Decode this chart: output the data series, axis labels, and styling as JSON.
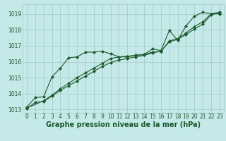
{
  "xlabel": "Graphe pression niveau de la mer (hPa)",
  "bg_color": "#c5e8e8",
  "grid_color": "#a0c8c8",
  "line_color": "#1a5c2a",
  "xlim": [
    -0.5,
    23.5
  ],
  "ylim": [
    1012.8,
    1019.6
  ],
  "yticks": [
    1013,
    1014,
    1015,
    1016,
    1017,
    1018,
    1019
  ],
  "xticks": [
    0,
    1,
    2,
    3,
    4,
    5,
    6,
    7,
    8,
    9,
    10,
    11,
    12,
    13,
    14,
    15,
    16,
    17,
    18,
    19,
    20,
    21,
    22,
    23
  ],
  "series1_x": [
    0,
    1,
    2,
    3,
    4,
    5,
    6,
    7,
    8,
    9,
    10,
    11,
    12,
    13,
    14,
    15,
    16,
    17,
    18,
    19,
    20,
    21,
    22,
    23
  ],
  "series1_y": [
    1013.15,
    1013.75,
    1013.8,
    1015.05,
    1015.6,
    1016.25,
    1016.3,
    1016.6,
    1016.6,
    1016.65,
    1016.5,
    1016.3,
    1016.3,
    1016.4,
    1016.45,
    1016.8,
    1016.7,
    1017.95,
    1017.35,
    1018.25,
    1018.85,
    1019.1,
    1019.0,
    1019.0
  ],
  "series2_x": [
    0,
    1,
    2,
    3,
    4,
    5,
    6,
    7,
    8,
    9,
    10,
    11,
    12,
    13,
    14,
    15,
    16,
    17,
    18,
    19,
    20,
    21,
    22,
    23
  ],
  "series2_y": [
    1013.05,
    1013.45,
    1013.5,
    1013.85,
    1014.2,
    1014.5,
    1014.8,
    1015.1,
    1015.4,
    1015.7,
    1015.95,
    1016.1,
    1016.2,
    1016.3,
    1016.4,
    1016.55,
    1016.65,
    1017.25,
    1017.4,
    1017.7,
    1018.05,
    1018.35,
    1018.95,
    1019.05
  ],
  "series3_x": [
    0,
    2,
    3,
    4,
    5,
    6,
    7,
    8,
    9,
    10,
    11,
    12,
    13,
    14,
    15,
    16,
    17,
    18,
    19,
    20,
    21,
    22,
    23
  ],
  "series3_y": [
    1013.1,
    1013.55,
    1013.9,
    1014.3,
    1014.65,
    1015.0,
    1015.3,
    1015.6,
    1015.9,
    1016.2,
    1016.3,
    1016.35,
    1016.4,
    1016.45,
    1016.6,
    1016.65,
    1017.3,
    1017.45,
    1017.8,
    1018.2,
    1018.5,
    1019.0,
    1019.1
  ],
  "marker": "D",
  "markersize": 2.0,
  "linewidth": 0.8,
  "xlabel_fontsize": 7,
  "tick_fontsize": 5.5
}
